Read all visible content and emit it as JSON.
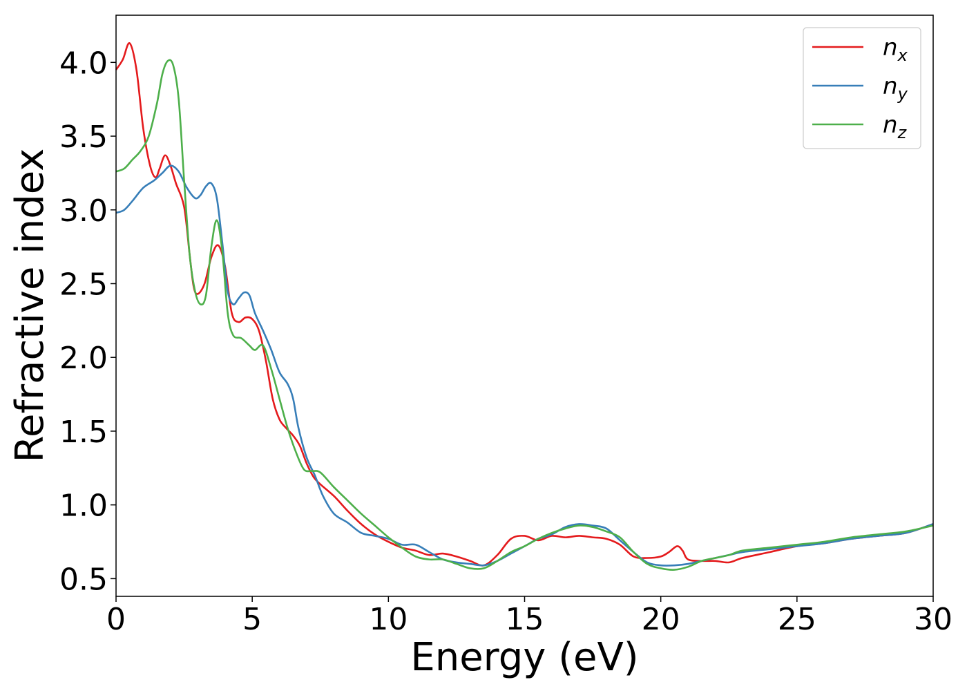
{
  "chart_data": {
    "type": "line",
    "title": "",
    "xlabel": "Energy (eV)",
    "ylabel": "Refractive index",
    "xlim": [
      0,
      30
    ],
    "ylim": [
      0.38,
      4.32
    ],
    "xticks": [
      0,
      5,
      10,
      15,
      20,
      25,
      30
    ],
    "yticks": [
      0.5,
      1.0,
      1.5,
      2.0,
      2.5,
      3.0,
      3.5,
      4.0
    ],
    "xtick_labels": [
      "0",
      "5",
      "10",
      "15",
      "20",
      "25",
      "30"
    ],
    "ytick_labels": [
      "0.5",
      "1.0",
      "1.5",
      "2.0",
      "2.5",
      "3.0",
      "3.5",
      "4.0"
    ],
    "grid": false,
    "legend_position": "top-right",
    "series": [
      {
        "name": "n_x",
        "label_base": "n",
        "label_sub": "x",
        "color": "#e41a1c",
        "x": [
          0,
          0.25,
          0.5,
          0.75,
          1.0,
          1.25,
          1.45,
          1.6,
          1.8,
          2.0,
          2.2,
          2.5,
          2.7,
          2.85,
          3.0,
          3.25,
          3.5,
          3.75,
          4.0,
          4.25,
          4.5,
          4.75,
          5.0,
          5.25,
          5.5,
          5.75,
          6.0,
          6.25,
          6.5,
          6.75,
          7.0,
          7.25,
          7.5,
          8.0,
          8.5,
          9.0,
          9.5,
          10.0,
          10.5,
          11.0,
          11.5,
          12.0,
          12.5,
          13.0,
          13.5,
          14.0,
          14.5,
          15.0,
          15.5,
          16.0,
          16.5,
          17.0,
          17.5,
          18.0,
          18.5,
          19.0,
          19.5,
          20.0,
          20.3,
          20.6,
          20.8,
          21.0,
          21.5,
          22.0,
          22.5,
          23.0,
          24.0,
          25.0,
          26.0,
          27.0,
          28.0,
          29.0,
          30.0
        ],
        "y": [
          3.95,
          4.02,
          4.13,
          3.95,
          3.55,
          3.3,
          3.22,
          3.28,
          3.37,
          3.3,
          3.18,
          3.02,
          2.7,
          2.48,
          2.43,
          2.5,
          2.68,
          2.76,
          2.62,
          2.3,
          2.24,
          2.27,
          2.26,
          2.18,
          1.98,
          1.72,
          1.58,
          1.52,
          1.47,
          1.4,
          1.28,
          1.19,
          1.14,
          1.06,
          0.96,
          0.87,
          0.8,
          0.75,
          0.71,
          0.69,
          0.66,
          0.67,
          0.65,
          0.62,
          0.59,
          0.66,
          0.77,
          0.79,
          0.76,
          0.79,
          0.78,
          0.79,
          0.78,
          0.77,
          0.73,
          0.65,
          0.64,
          0.65,
          0.68,
          0.72,
          0.69,
          0.63,
          0.62,
          0.62,
          0.61,
          0.64,
          0.68,
          0.72,
          0.74,
          0.77,
          0.79,
          0.81,
          0.87
        ]
      },
      {
        "name": "n_y",
        "label_base": "n",
        "label_sub": "y",
        "color": "#377eb8",
        "x": [
          0,
          0.3,
          0.6,
          1.0,
          1.4,
          1.7,
          2.0,
          2.3,
          2.6,
          2.9,
          3.1,
          3.3,
          3.5,
          3.7,
          3.9,
          4.1,
          4.3,
          4.5,
          4.7,
          4.9,
          5.1,
          5.4,
          5.7,
          6.0,
          6.3,
          6.5,
          6.7,
          7.0,
          7.3,
          7.6,
          8.0,
          8.5,
          9.0,
          9.5,
          10.0,
          10.5,
          11.0,
          11.5,
          12.0,
          12.5,
          13.0,
          13.5,
          14.0,
          14.5,
          15.0,
          15.5,
          16.0,
          16.5,
          17.0,
          17.5,
          18.0,
          18.5,
          19.0,
          19.5,
          20.0,
          20.5,
          21.0,
          21.5,
          22.0,
          22.5,
          23.0,
          24.0,
          25.0,
          26.0,
          27.0,
          28.0,
          29.0,
          30.0
        ],
        "y": [
          2.98,
          3.0,
          3.06,
          3.15,
          3.2,
          3.25,
          3.3,
          3.26,
          3.15,
          3.08,
          3.1,
          3.16,
          3.18,
          3.08,
          2.78,
          2.45,
          2.36,
          2.4,
          2.44,
          2.42,
          2.3,
          2.18,
          2.05,
          1.9,
          1.82,
          1.72,
          1.52,
          1.32,
          1.2,
          1.06,
          0.94,
          0.88,
          0.81,
          0.79,
          0.77,
          0.73,
          0.73,
          0.68,
          0.63,
          0.61,
          0.6,
          0.59,
          0.62,
          0.67,
          0.72,
          0.77,
          0.8,
          0.85,
          0.87,
          0.86,
          0.84,
          0.76,
          0.68,
          0.61,
          0.59,
          0.59,
          0.6,
          0.62,
          0.64,
          0.66,
          0.68,
          0.7,
          0.72,
          0.74,
          0.77,
          0.79,
          0.81,
          0.87
        ]
      },
      {
        "name": "n_z",
        "label_base": "n",
        "label_sub": "z",
        "color": "#4daf4a",
        "x": [
          0,
          0.3,
          0.6,
          0.9,
          1.2,
          1.5,
          1.7,
          1.9,
          2.1,
          2.3,
          2.5,
          2.7,
          2.9,
          3.1,
          3.3,
          3.5,
          3.7,
          3.9,
          4.1,
          4.3,
          4.6,
          4.9,
          5.1,
          5.4,
          5.7,
          6.0,
          6.3,
          6.6,
          6.9,
          7.2,
          7.5,
          8.0,
          8.5,
          9.0,
          9.5,
          10.0,
          10.5,
          11.0,
          11.5,
          12.0,
          12.5,
          13.0,
          13.5,
          14.0,
          14.5,
          15.0,
          15.5,
          16.0,
          16.5,
          17.0,
          17.5,
          18.0,
          18.5,
          19.0,
          19.5,
          20.0,
          20.5,
          21.0,
          21.5,
          22.0,
          22.5,
          23.0,
          24.0,
          25.0,
          26.0,
          27.0,
          28.0,
          29.0,
          30.0
        ],
        "y": [
          3.26,
          3.28,
          3.34,
          3.4,
          3.5,
          3.72,
          3.92,
          4.01,
          3.98,
          3.75,
          3.2,
          2.7,
          2.45,
          2.36,
          2.42,
          2.75,
          2.93,
          2.72,
          2.3,
          2.15,
          2.13,
          2.08,
          2.05,
          2.08,
          1.92,
          1.72,
          1.52,
          1.36,
          1.24,
          1.23,
          1.22,
          1.12,
          1.03,
          0.94,
          0.86,
          0.78,
          0.71,
          0.65,
          0.63,
          0.63,
          0.6,
          0.57,
          0.57,
          0.62,
          0.68,
          0.72,
          0.77,
          0.81,
          0.84,
          0.86,
          0.85,
          0.82,
          0.78,
          0.68,
          0.6,
          0.57,
          0.56,
          0.58,
          0.62,
          0.64,
          0.66,
          0.69,
          0.71,
          0.73,
          0.75,
          0.78,
          0.8,
          0.82,
          0.86
        ]
      }
    ]
  }
}
